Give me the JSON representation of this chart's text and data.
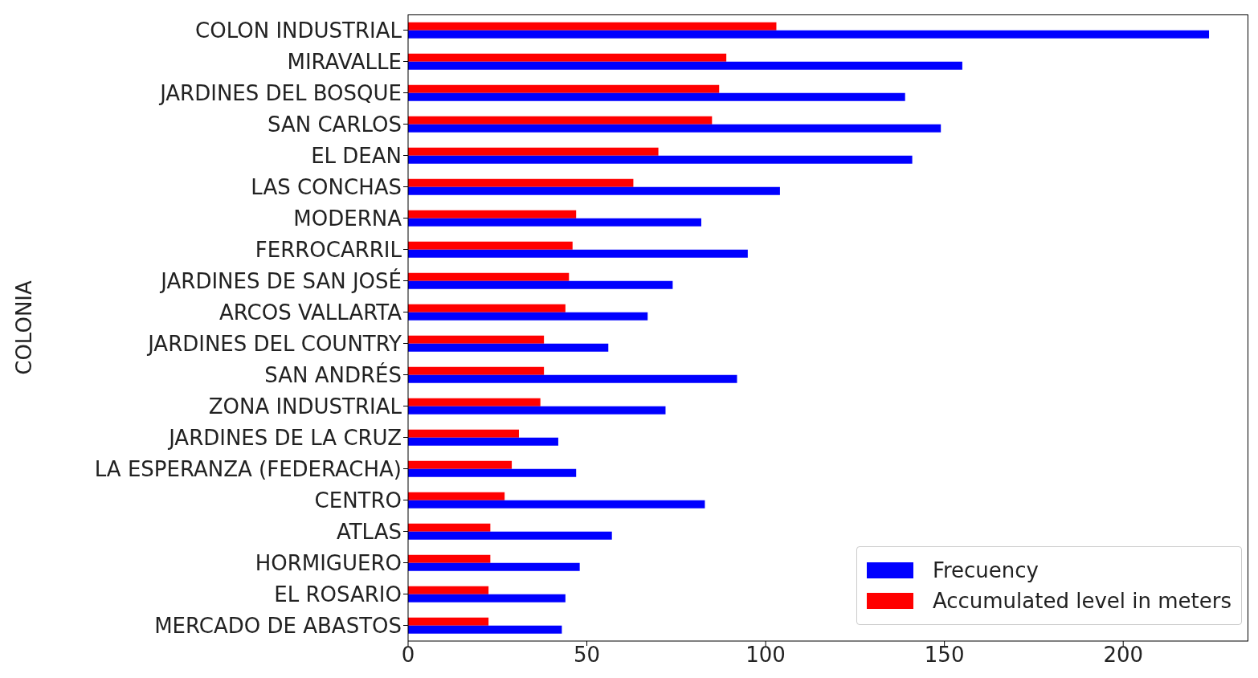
{
  "chart_data": {
    "type": "bar",
    "orientation": "horizontal",
    "ylabel": "COLONIA",
    "categories": [
      "COLON INDUSTRIAL",
      "MIRAVALLE",
      "JARDINES DEL BOSQUE",
      "SAN CARLOS",
      "EL DEAN",
      "LAS CONCHAS",
      "MODERNA",
      "FERROCARRIL",
      "JARDINES DE SAN JOSÉ",
      "ARCOS VALLARTA",
      "JARDINES DEL COUNTRY",
      "SAN ANDRÉS",
      "ZONA INDUSTRIAL",
      "JARDINES DE LA CRUZ",
      "LA ESPERANZA (FEDERACHA)",
      "CENTRO",
      "ATLAS",
      "HORMIGUERO",
      "EL ROSARIO",
      "MERCADO DE ABASTOS"
    ],
    "series": [
      {
        "name": "Frecuency",
        "color": "#0000ff",
        "values": [
          224,
          155,
          139,
          149,
          141,
          104,
          82,
          95,
          74,
          67,
          56,
          92,
          72,
          42,
          47,
          83,
          57,
          48,
          44,
          43
        ]
      },
      {
        "name": "Accumulated level in meters",
        "color": "#ff0000",
        "values": [
          103,
          89,
          87,
          85,
          70,
          63,
          47,
          46,
          45,
          44,
          38,
          38,
          37,
          31,
          29,
          27,
          23,
          23,
          22.5,
          22.5
        ]
      }
    ],
    "xlim": [
      0,
      235
    ],
    "xticks": [
      0,
      50,
      100,
      150,
      200
    ],
    "grid": false,
    "legend": "bottom right"
  }
}
